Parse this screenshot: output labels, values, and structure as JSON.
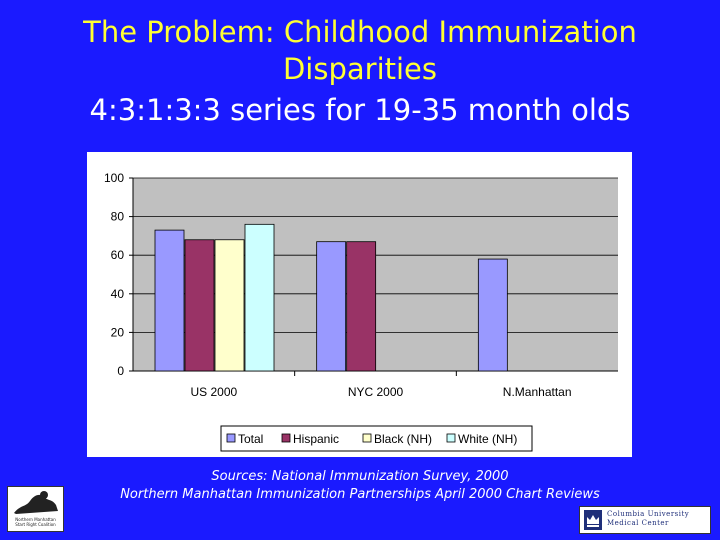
{
  "slide": {
    "title_line1": "The Problem: Childhood Immunization",
    "title_line2": "Disparities",
    "subtitle": "4:3:1:3:3 series for 19-35 month olds",
    "sources_line1": "Sources: National Immunization Survey, 2000",
    "sources_line2": "Northern Manhattan Immunization Partnerships April 2000 Chart Reviews"
  },
  "logos": {
    "left_caption_line1": "Northern Manhattan",
    "left_caption_line2": "Start Right Coalition",
    "right_line1": "Columbia University",
    "right_line2": "Medical Center"
  },
  "colors": {
    "background": "#1a1aff",
    "title": "#ffff33",
    "text": "#ffffff",
    "plot_bg": "#c0c0c0"
  },
  "chart_data": {
    "type": "bar",
    "title": "",
    "xlabel": "",
    "ylabel": "",
    "ylim": [
      0,
      100
    ],
    "yticks": [
      0,
      20,
      40,
      60,
      80,
      100
    ],
    "grid": true,
    "legend_position": "bottom",
    "categories": [
      "US 2000",
      "NYC 2000",
      "N.Manhattan"
    ],
    "series": [
      {
        "name": "Total",
        "color": "#9999ff",
        "values": [
          73,
          67,
          58
        ]
      },
      {
        "name": "Hispanic",
        "color": "#993366",
        "values": [
          68,
          67,
          null
        ]
      },
      {
        "name": "Black (NH)",
        "color": "#ffffcc",
        "values": [
          68,
          null,
          null
        ]
      },
      {
        "name": "White (NH)",
        "color": "#ccffff",
        "values": [
          76,
          null,
          null
        ]
      }
    ]
  }
}
